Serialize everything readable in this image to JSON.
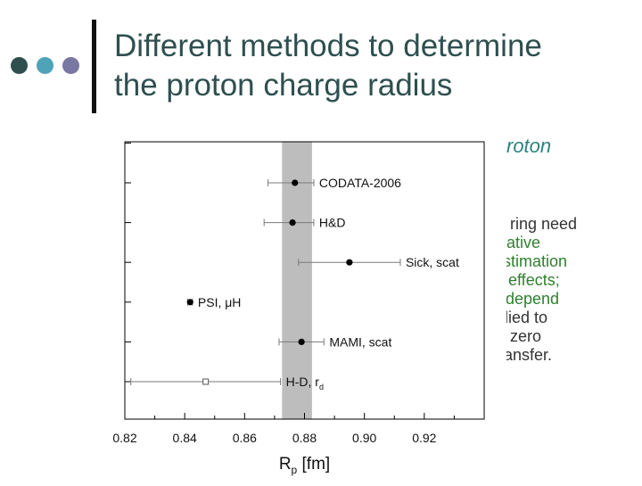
{
  "slide": {
    "title_line1": "Different methods to determine",
    "title_line2": "the proton charge radius",
    "bullet_dots": [
      "#2f4f4f",
      "#4fa3b8",
      "#7b77a3"
    ],
    "background_fragments": {
      "italic": "roton",
      "lines": [
        "ring need",
        "ative",
        "stimation",
        "effects;",
        "depend",
        "lied to",
        "zero",
        "ansfer."
      ]
    }
  },
  "chart_data": {
    "type": "scatter",
    "xlabel": "R",
    "xlabel_sub": "p",
    "xlabel_unit": " [fm]",
    "xlim": [
      0.82,
      0.94
    ],
    "xticks": [
      0.82,
      0.84,
      0.86,
      0.88,
      0.9,
      0.92
    ],
    "xtick_labels": [
      "0.82",
      "0.84",
      "0.86",
      "0.88",
      "0.90",
      "0.92"
    ],
    "band": [
      0.8725,
      0.8825
    ],
    "band_color": "#bdbdbd",
    "points": [
      {
        "label": "CODATA-2006",
        "x": 0.8768,
        "xerr": [
          0.8678,
          0.8831
        ],
        "row": 1
      },
      {
        "label": "H&D",
        "x": 0.876,
        "xerr": [
          0.8665,
          0.8831
        ],
        "row": 2
      },
      {
        "label": "Sick, scat",
        "x": 0.895,
        "xerr": [
          0.878,
          0.912
        ],
        "row": 3
      },
      {
        "label": "PSI, μH",
        "x": 0.8418,
        "xerr": [
          0.841,
          0.8426
        ],
        "row": 4
      },
      {
        "label": "MAMI, scat",
        "x": 0.879,
        "xerr": [
          0.8715,
          0.8865
        ],
        "row": 5
      },
      {
        "label": "H-D, r",
        "label_sub": "d",
        "x": 0.847,
        "xerr": [
          0.822,
          0.872
        ],
        "row": 6,
        "hollow": true
      }
    ]
  }
}
